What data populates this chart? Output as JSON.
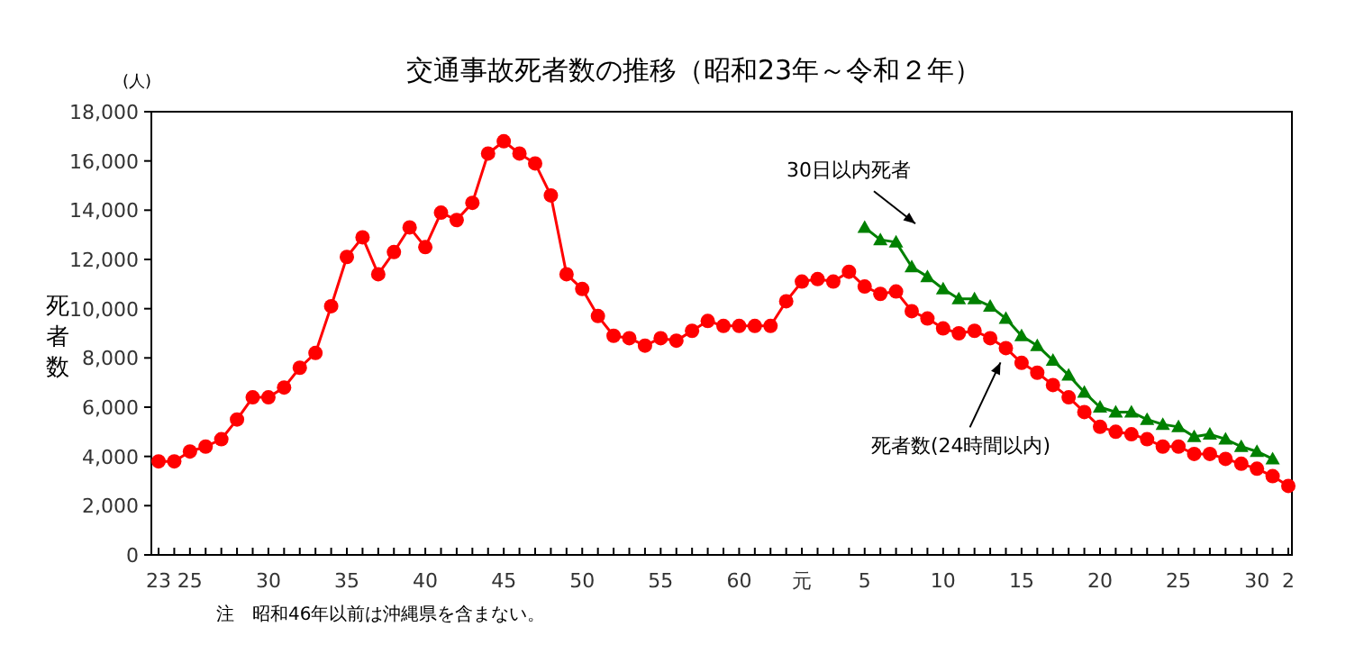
{
  "chart_data": {
    "type": "line",
    "title": "交通事故死者数の推移（昭和23年～令和２年）",
    "ylabel": "死者数",
    "annotations": [
      "(人)",
      "注　昭和46年以前は沖縄県を含まない。"
    ],
    "categories": [
      "23",
      null,
      "25",
      null,
      null,
      null,
      null,
      "30",
      null,
      null,
      null,
      null,
      "35",
      null,
      null,
      null,
      null,
      "40",
      null,
      null,
      null,
      null,
      "45",
      null,
      null,
      null,
      null,
      "50",
      null,
      null,
      null,
      null,
      "55",
      null,
      null,
      null,
      null,
      "60",
      null,
      null,
      null,
      "元",
      null,
      null,
      null,
      "5",
      null,
      null,
      null,
      null,
      "10",
      null,
      null,
      null,
      null,
      "15",
      null,
      null,
      null,
      null,
      "20",
      null,
      null,
      null,
      null,
      "25",
      null,
      null,
      null,
      null,
      "30",
      null,
      "2"
    ],
    "series": [
      {
        "name": "死者数(24時間以内)",
        "color": "#ff0000",
        "marker": "circle",
        "values": [
          3800,
          3800,
          4200,
          4400,
          4700,
          5500,
          6400,
          6400,
          6800,
          7600,
          8200,
          10100,
          12100,
          12900,
          11400,
          12300,
          13300,
          12500,
          13900,
          13600,
          14300,
          16300,
          16800,
          16300,
          15900,
          14600,
          11400,
          10800,
          9700,
          8900,
          8800,
          8500,
          8800,
          8700,
          9100,
          9500,
          9300,
          9300,
          9300,
          9300,
          10300,
          11100,
          11200,
          11100,
          11500,
          10900,
          10600,
          10700,
          9900,
          9600,
          9200,
          9000,
          9100,
          8800,
          8400,
          7800,
          7400,
          6900,
          6400,
          5800,
          5200,
          5000,
          4900,
          4700,
          4400,
          4400,
          4100,
          4100,
          3900,
          3700,
          3500,
          3200,
          2800
        ]
      },
      {
        "name": "30日以内死者",
        "color": "#008000",
        "marker": "triangle",
        "values": [
          null,
          null,
          null,
          null,
          null,
          null,
          null,
          null,
          null,
          null,
          null,
          null,
          null,
          null,
          null,
          null,
          null,
          null,
          null,
          null,
          null,
          null,
          null,
          null,
          null,
          null,
          null,
          null,
          null,
          null,
          null,
          null,
          null,
          null,
          null,
          null,
          null,
          null,
          null,
          null,
          null,
          null,
          null,
          null,
          null,
          13300,
          12800,
          12700,
          11700,
          11300,
          10800,
          10400,
          10400,
          10100,
          9600,
          8900,
          8500,
          7900,
          7300,
          6600,
          6000,
          5800,
          5800,
          5500,
          5300,
          5200,
          4800,
          4900,
          4700,
          4400,
          4200,
          3900,
          null
        ]
      }
    ],
    "ylim": [
      0,
      18000
    ],
    "yticks": [
      {
        "value": 0,
        "label": "0"
      },
      {
        "value": 2000,
        "label": "2,000"
      },
      {
        "value": 4000,
        "label": "4,000"
      },
      {
        "value": 6000,
        "label": "6,000"
      },
      {
        "value": 8000,
        "label": "8,000"
      },
      {
        "value": 10000,
        "label": "10,000"
      },
      {
        "value": 12000,
        "label": "12,000"
      },
      {
        "value": 14000,
        "label": "14,000"
      },
      {
        "value": 16000,
        "label": "16,000"
      },
      {
        "value": 18000,
        "label": "18,000"
      }
    ],
    "grid": false,
    "legend": false
  }
}
